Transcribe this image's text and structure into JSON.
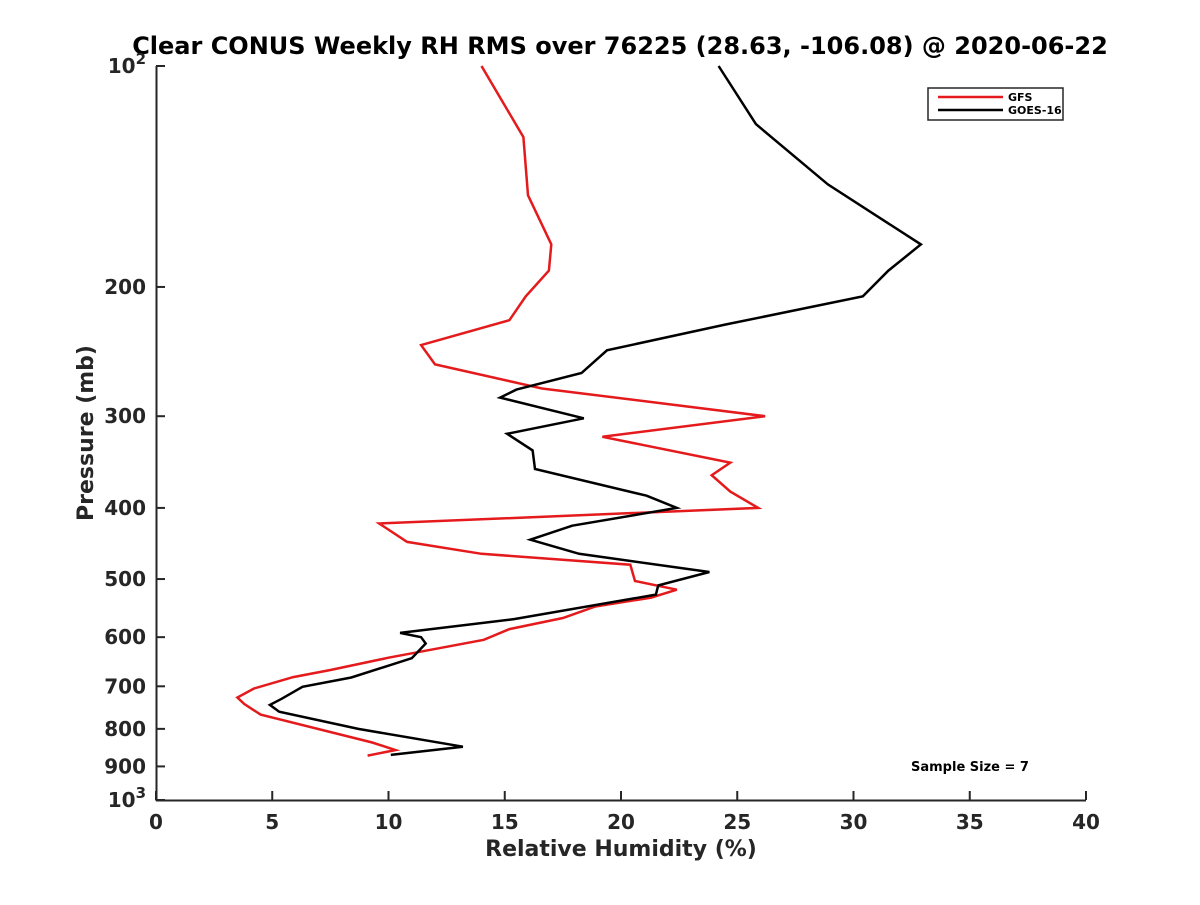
{
  "chart_data": {
    "type": "line",
    "title": "Clear CONUS Weekly RH RMS over 76225 (28.63, -106.08) @ 2020-06-22",
    "xlabel": "Relative Humidity (%)",
    "ylabel": "Pressure (mb)",
    "xlim": [
      0,
      40
    ],
    "ylim": [
      100,
      1000
    ],
    "y_scale": "log",
    "y_reversed": true,
    "grid": false,
    "legend_position": "top-right",
    "x_ticks": [
      "0",
      "5",
      "10",
      "15",
      "20",
      "25",
      "30",
      "35",
      "40"
    ],
    "y_ticks": [
      {
        "value": 100,
        "base": "10",
        "exp": "2"
      },
      {
        "value": 200,
        "label": "200"
      },
      {
        "value": 300,
        "label": "300"
      },
      {
        "value": 400,
        "label": "400"
      },
      {
        "value": 500,
        "label": "500"
      },
      {
        "value": 600,
        "label": "600"
      },
      {
        "value": 700,
        "label": "700"
      },
      {
        "value": 800,
        "label": "800"
      },
      {
        "value": 900,
        "label": "900"
      },
      {
        "value": 1000,
        "base": "10",
        "exp": "3"
      }
    ],
    "annotation": "Sample Size = 7",
    "series": [
      {
        "name": "GFS",
        "color": "#e41a1c",
        "points": [
          [
            14.0,
            100
          ],
          [
            15.8,
            125
          ],
          [
            16.0,
            150
          ],
          [
            17.0,
            175
          ],
          [
            16.9,
            190
          ],
          [
            15.9,
            206
          ],
          [
            15.2,
            222
          ],
          [
            11.4,
            240
          ],
          [
            12.0,
            255
          ],
          [
            16.6,
            275
          ],
          [
            26.2,
            300
          ],
          [
            19.2,
            320
          ],
          [
            24.7,
            347
          ],
          [
            23.9,
            361
          ],
          [
            24.7,
            380
          ],
          [
            25.9,
            400
          ],
          [
            9.6,
            420
          ],
          [
            10.8,
            445
          ],
          [
            14.0,
            462
          ],
          [
            20.4,
            478
          ],
          [
            20.6,
            503
          ],
          [
            22.4,
            517
          ],
          [
            21.3,
            530
          ],
          [
            18.9,
            545
          ],
          [
            17.5,
            565
          ],
          [
            15.2,
            585
          ],
          [
            14.1,
            605
          ],
          [
            10.0,
            640
          ],
          [
            7.5,
            665
          ],
          [
            5.9,
            680
          ],
          [
            4.2,
            705
          ],
          [
            3.5,
            725
          ],
          [
            3.8,
            740
          ],
          [
            4.5,
            765
          ],
          [
            9.3,
            835
          ],
          [
            10.3,
            855
          ],
          [
            9.1,
            870
          ]
        ]
      },
      {
        "name": "GOES-16",
        "color": "#000000",
        "points": [
          [
            24.2,
            100
          ],
          [
            25.8,
            120
          ],
          [
            28.9,
            145
          ],
          [
            32.9,
            175
          ],
          [
            31.5,
            190
          ],
          [
            30.4,
            206
          ],
          [
            24.5,
            225
          ],
          [
            19.4,
            244
          ],
          [
            18.3,
            262
          ],
          [
            15.5,
            276
          ],
          [
            14.8,
            283
          ],
          [
            18.4,
            302
          ],
          [
            15.1,
            317
          ],
          [
            16.2,
            334
          ],
          [
            16.3,
            354
          ],
          [
            21.1,
            385
          ],
          [
            22.4,
            400
          ],
          [
            17.9,
            423
          ],
          [
            16.1,
            442
          ],
          [
            18.2,
            462
          ],
          [
            23.8,
            489
          ],
          [
            21.6,
            510
          ],
          [
            21.5,
            525
          ],
          [
            15.4,
            567
          ],
          [
            10.5,
            592
          ],
          [
            11.4,
            600
          ],
          [
            11.6,
            612
          ],
          [
            11.0,
            641
          ],
          [
            8.4,
            681
          ],
          [
            6.3,
            701
          ],
          [
            5.4,
            728
          ],
          [
            4.9,
            742
          ],
          [
            5.3,
            758
          ],
          [
            8.7,
            800
          ],
          [
            13.2,
            846
          ],
          [
            10.1,
            868
          ]
        ]
      }
    ]
  }
}
